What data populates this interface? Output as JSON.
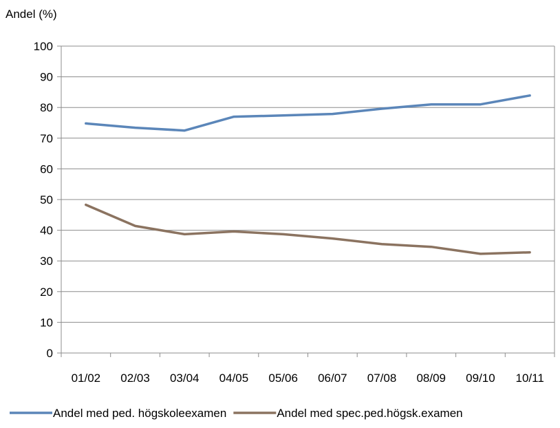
{
  "chart_data": {
    "type": "line",
    "ylabel": "Andel (%)",
    "xlabel": "",
    "ylim": [
      0,
      100
    ],
    "yticks": [
      "0",
      "10",
      "20",
      "30",
      "40",
      "50",
      "60",
      "70",
      "80",
      "90",
      "100"
    ],
    "categories": [
      "01/02",
      "02/03",
      "03/04",
      "04/05",
      "05/06",
      "06/07",
      "07/08",
      "08/09",
      "09/10",
      "10/11"
    ],
    "grid": true,
    "legend_position": "bottom",
    "series": [
      {
        "name": "Andel med ped. högskoleexamen",
        "color": "#5b86b9",
        "values": [
          74.8,
          73.4,
          72.5,
          77.0,
          77.4,
          77.9,
          79.6,
          81.0,
          81.0,
          83.9
        ]
      },
      {
        "name": "Andel med spec.ped.högsk.examen",
        "color": "#8b7360",
        "values": [
          48.3,
          41.4,
          38.7,
          39.6,
          38.7,
          37.3,
          35.5,
          34.6,
          32.3,
          32.8
        ]
      }
    ]
  }
}
